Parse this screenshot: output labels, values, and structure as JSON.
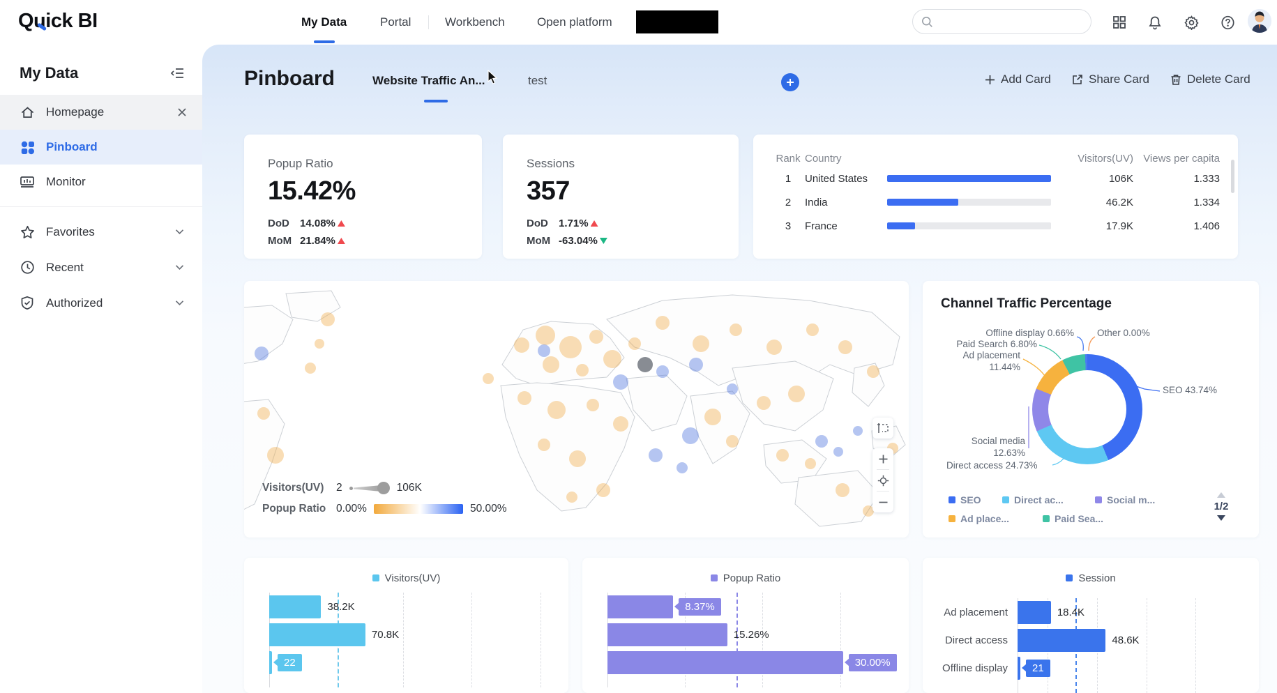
{
  "topnav": {
    "logo": "Quick BI",
    "nav_items": [
      "My Data",
      "Portal",
      "Workbench",
      "Open platform"
    ],
    "active_nav": "My Data",
    "search": {
      "placeholder": ""
    }
  },
  "sidebar": {
    "title": "My Data",
    "items": [
      {
        "label": "Homepage"
      },
      {
        "label": "Pinboard"
      },
      {
        "label": "Monitor"
      }
    ],
    "groups": [
      {
        "label": "Favorites"
      },
      {
        "label": "Recent"
      },
      {
        "label": "Authorized"
      }
    ]
  },
  "header": {
    "title": "Pinboard",
    "tabs": [
      {
        "label": "Website Traffic An...",
        "active": true
      },
      {
        "label": "test",
        "active": false
      }
    ],
    "actions": {
      "add": "Add Card",
      "share": "Share Card",
      "delete": "Delete Card"
    }
  },
  "status_colors": {
    "up": "#f0494e",
    "down": "#1cb784"
  },
  "chart_data": [
    {
      "type": "kpi",
      "title": "Popup Ratio",
      "value": "15.42%",
      "metrics": [
        {
          "label": "DoD",
          "value": "14.08%",
          "direction": "up"
        },
        {
          "label": "MoM",
          "value": "21.84%",
          "direction": "up"
        }
      ]
    },
    {
      "type": "kpi",
      "title": "Sessions",
      "value": "357",
      "metrics": [
        {
          "label": "DoD",
          "value": "1.71%",
          "direction": "up"
        },
        {
          "label": "MoM",
          "value": "-63.04%",
          "direction": "down"
        }
      ]
    },
    {
      "type": "table",
      "columns": [
        "Rank",
        "Country",
        "Visitors(UV)",
        "Views per capita"
      ],
      "bar_color": "#3b6df2",
      "uv_max": 106000,
      "rows": [
        {
          "rank": "1",
          "country": "United States",
          "uv": 106000,
          "uv_label": "106K",
          "capita": "1.333"
        },
        {
          "rank": "2",
          "country": "India",
          "uv": 46200,
          "uv_label": "46.2K",
          "capita": "1.334"
        },
        {
          "rank": "3",
          "country": "France",
          "uv": 17900,
          "uv_label": "17.9K",
          "capita": "1.406"
        }
      ]
    },
    {
      "type": "map",
      "size_legend": {
        "label": "Visitors(UV)",
        "min": "2",
        "max": "106K"
      },
      "color_legend": {
        "label": "Popup Ratio",
        "min": "0.00%",
        "max": "50.00%",
        "gradient": [
          "#f2a93c",
          "#ffffff",
          "#2a62f2"
        ]
      }
    },
    {
      "type": "pie",
      "title": "Channel Traffic Percentage",
      "slices": [
        {
          "label": "SEO",
          "value": 43.74,
          "color": "#3b6df2",
          "callout": "SEO 43.74%"
        },
        {
          "label": "Direct access",
          "value": 24.73,
          "color": "#5ec8f2",
          "callout": "Direct access 24.73%"
        },
        {
          "label": "Social media",
          "value": 12.63,
          "color": "#8f87e8",
          "callout": "Social media\n12.63%"
        },
        {
          "label": "Ad placement",
          "value": 11.44,
          "color": "#f6b23e",
          "callout": "Ad placement\n11.44%"
        },
        {
          "label": "Paid Search",
          "value": 6.8,
          "color": "#3fc3a4",
          "callout": "Paid Search  6.80%"
        },
        {
          "label": "Offline display",
          "value": 0.66,
          "color": "#4a7cf0",
          "callout": "Offline display 0.66%"
        },
        {
          "label": "Other",
          "value": 0.0,
          "color": "#f59a57",
          "callout": "Other 0.00%"
        }
      ],
      "legend_items": [
        {
          "label": "SEO",
          "color": "#3b6df2"
        },
        {
          "label": "Direct ac...",
          "color": "#5ec8f2"
        },
        {
          "label": "Social m...",
          "color": "#8f87e8"
        },
        {
          "label": "Ad place...",
          "color": "#f6b23e"
        },
        {
          "label": "Paid Sea...",
          "color": "#3fc3a4"
        }
      ],
      "legend_page": "1/2"
    },
    {
      "type": "bar",
      "legend": "Visitors(UV)",
      "color": "#5bc6ee",
      "values": [
        38200,
        70800,
        22
      ],
      "labels": [
        "38.2K",
        "70.8K",
        "22"
      ],
      "xmax": 210000
    },
    {
      "type": "bar",
      "legend": "Popup Ratio",
      "color": "#8a87e6",
      "values": [
        8.37,
        15.26,
        30.0
      ],
      "labels": [
        "8.37%",
        "15.26%",
        "30.00%"
      ],
      "xmax": 36.6
    },
    {
      "type": "bar",
      "legend": "Session",
      "color": "#3a74ec",
      "categories": [
        "Ad placement",
        "Direct access",
        "Offline display"
      ],
      "values": [
        18400,
        48600,
        21
      ],
      "labels": [
        "18.4K",
        "48.6K",
        "21"
      ],
      "xmax": 122000
    }
  ]
}
